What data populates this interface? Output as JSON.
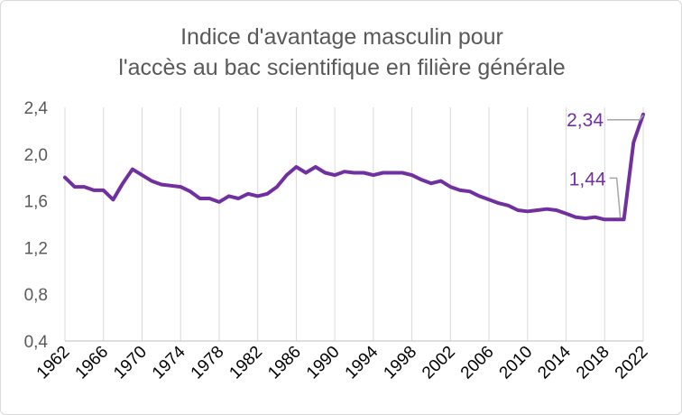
{
  "chart_data": {
    "type": "line",
    "title_lines": [
      "Indice d'avantage masculin pour",
      "l'accès au bac scientifique en filière générale"
    ],
    "xlabel": "",
    "ylabel": "",
    "ylim": [
      0.4,
      2.4
    ],
    "yticks": [
      "0,4",
      "0,8",
      "1,2",
      "1,6",
      "2,0",
      "2,4"
    ],
    "ytick_values": [
      0.4,
      0.8,
      1.2,
      1.6,
      2.0,
      2.4
    ],
    "xticks": [
      "1962",
      "1966",
      "1970",
      "1974",
      "1978",
      "1982",
      "1986",
      "1990",
      "1994",
      "1998",
      "2002",
      "2006",
      "2010",
      "2014",
      "2018",
      "2022"
    ],
    "xtick_values": [
      1962,
      1966,
      1970,
      1974,
      1978,
      1982,
      1986,
      1990,
      1994,
      1998,
      2002,
      2006,
      2010,
      2014,
      2018,
      2022
    ],
    "xlim": [
      1962,
      2022
    ],
    "grid": "vertical",
    "series": [
      {
        "color": "#7030a0",
        "x": [
          1962,
          1963,
          1964,
          1965,
          1966,
          1967,
          1968,
          1969,
          1970,
          1971,
          1972,
          1973,
          1974,
          1975,
          1976,
          1977,
          1978,
          1979,
          1980,
          1981,
          1982,
          1983,
          1984,
          1985,
          1986,
          1987,
          1988,
          1989,
          1990,
          1991,
          1992,
          1993,
          1994,
          1995,
          1996,
          1997,
          1998,
          1999,
          2000,
          2001,
          2002,
          2003,
          2004,
          2005,
          2006,
          2007,
          2008,
          2009,
          2010,
          2011,
          2012,
          2013,
          2014,
          2015,
          2016,
          2017,
          2018,
          2019,
          2020,
          2021,
          2022
        ],
        "values": [
          1.8,
          1.72,
          1.72,
          1.69,
          1.69,
          1.61,
          1.75,
          1.87,
          1.82,
          1.77,
          1.74,
          1.73,
          1.72,
          1.68,
          1.62,
          1.62,
          1.59,
          1.64,
          1.62,
          1.66,
          1.64,
          1.66,
          1.72,
          1.82,
          1.89,
          1.84,
          1.89,
          1.84,
          1.82,
          1.85,
          1.84,
          1.84,
          1.82,
          1.84,
          1.84,
          1.84,
          1.82,
          1.78,
          1.75,
          1.77,
          1.72,
          1.69,
          1.68,
          1.64,
          1.61,
          1.58,
          1.56,
          1.52,
          1.51,
          1.52,
          1.53,
          1.52,
          1.49,
          1.46,
          1.45,
          1.46,
          1.44,
          1.44,
          1.44,
          2.1,
          2.34
        ]
      }
    ],
    "annotations": [
      {
        "label": "1,44",
        "x": 2020,
        "y": 1.44,
        "color": "#7030a0"
      },
      {
        "label": "2,34",
        "x": 2022,
        "y": 2.34,
        "color": "#7030a0"
      }
    ]
  }
}
